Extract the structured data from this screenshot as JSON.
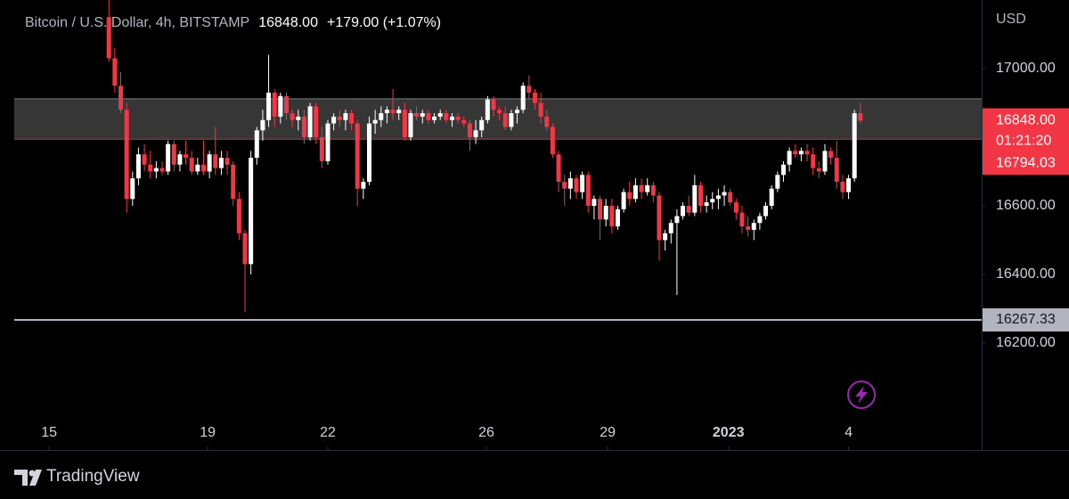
{
  "chart_data": {
    "type": "candlestick",
    "title": "Bitcoin / U.S. Dollar, 4h, BITSTAMP",
    "last_price": {
      "value": 16848,
      "label": "16848.00"
    },
    "change": "+179.00 (+1.07%)",
    "currency": "USD",
    "countdown": "01:21:20",
    "up_color": "#ffffff",
    "down_color": "#f23645",
    "ylim": [
      16005,
      17200
    ],
    "yticks": [
      {
        "value": 16200,
        "label": "16200.00"
      },
      {
        "value": 16400,
        "label": "16400.00"
      },
      {
        "value": 16600,
        "label": "16600.00"
      },
      {
        "value": 17000,
        "label": "17000.00"
      }
    ],
    "xlim": [
      -18.4,
      147.2
    ],
    "xticks": [
      {
        "value": -10.1,
        "label": "15"
      },
      {
        "value": 16.7,
        "label": "19"
      },
      {
        "value": 37.0,
        "label": "22"
      },
      {
        "value": 63.8,
        "label": "26"
      },
      {
        "value": 84.3,
        "label": "29"
      },
      {
        "value": 104.7,
        "label": "2023"
      },
      {
        "value": 125.0,
        "label": "4"
      }
    ],
    "zone": {
      "top": 16912,
      "bottom": {
        "value": 16794.03,
        "label": "16794.03"
      }
    },
    "level": {
      "value": 16267.33,
      "label": "16267.33"
    },
    "open": [
      17150,
      17030,
      16950,
      16880,
      16620,
      16680,
      16750,
      16720,
      16700,
      16710,
      16700,
      16780,
      16720,
      16750,
      16740,
      16700,
      16720,
      16700,
      16750,
      16710,
      16740,
      16720,
      16620,
      16520,
      16430,
      16740,
      16820,
      16850,
      16930,
      16860,
      16920,
      16870,
      16850,
      16860,
      16800,
      16890,
      16800,
      16730,
      16840,
      16860,
      16850,
      16870,
      16840,
      16650,
      16670,
      16840,
      16850,
      16870,
      16880,
      16870,
      16880,
      16800,
      16870,
      16860,
      16870,
      16850,
      16860,
      16870,
      16850,
      16860,
      16850,
      16840,
      16800,
      16820,
      16850,
      16910,
      16880,
      16870,
      16830,
      16870,
      16880,
      16950,
      16930,
      16900,
      16860,
      16830,
      16750,
      16670,
      16650,
      16680,
      16640,
      16690,
      16600,
      16620,
      16560,
      16600,
      16540,
      16590,
      16640,
      16620,
      16660,
      16640,
      16660,
      16630,
      16500,
      16520,
      16550,
      16570,
      16600,
      16580,
      16660,
      16600,
      16610,
      16620,
      16630,
      16640,
      16610,
      16580,
      16540,
      16530,
      16550,
      16570,
      16600,
      16650,
      16690,
      16720,
      16760,
      16750,
      16760,
      16750,
      16710,
      16700,
      16760,
      16740,
      16670,
      16640,
      16680,
      16870
    ],
    "high": [
      17200,
      17060,
      16990,
      16900,
      16700,
      16770,
      16780,
      16760,
      16730,
      16730,
      16790,
      16790,
      16760,
      16790,
      16760,
      16740,
      16790,
      16760,
      16830,
      16760,
      16760,
      16730,
      16640,
      16530,
      16760,
      16830,
      16880,
      17040,
      16940,
      16930,
      16930,
      16880,
      16880,
      16880,
      16900,
      16900,
      16830,
      16850,
      16870,
      16880,
      16880,
      16880,
      16850,
      16680,
      16860,
      16880,
      16890,
      16890,
      16940,
      16890,
      16900,
      16880,
      16890,
      16880,
      16880,
      16870,
      16880,
      16880,
      16870,
      16870,
      16860,
      16850,
      16850,
      16860,
      16920,
      16920,
      16890,
      16890,
      16880,
      16890,
      16960,
      16980,
      16940,
      16930,
      16880,
      16840,
      16760,
      16690,
      16700,
      16690,
      16700,
      16700,
      16630,
      16630,
      16620,
      16620,
      16600,
      16650,
      16670,
      16680,
      16680,
      16680,
      16670,
      16640,
      16530,
      16560,
      16590,
      16610,
      16630,
      16690,
      16670,
      16630,
      16640,
      16650,
      16660,
      16650,
      16620,
      16600,
      16570,
      16560,
      16580,
      16610,
      16660,
      16700,
      16730,
      16770,
      16780,
      16770,
      16780,
      16770,
      16730,
      16780,
      16770,
      16790,
      16690,
      16690,
      16880,
      16900
    ],
    "low": [
      17020,
      16930,
      16870,
      16580,
      16600,
      16660,
      16700,
      16680,
      16680,
      16690,
      16690,
      16700,
      16700,
      16720,
      16690,
      16690,
      16690,
      16680,
      16690,
      16690,
      16690,
      16600,
      16500,
      16290,
      16400,
      16720,
      16790,
      16830,
      16830,
      16840,
      16850,
      16830,
      16820,
      16780,
      16790,
      16780,
      16710,
      16720,
      16820,
      16830,
      16820,
      16820,
      16600,
      16620,
      16660,
      16810,
      16830,
      16840,
      16850,
      16850,
      16790,
      16790,
      16850,
      16840,
      16840,
      16840,
      16850,
      16840,
      16830,
      16840,
      16830,
      16760,
      16780,
      16800,
      16840,
      16860,
      16850,
      16820,
      16820,
      16840,
      16870,
      16910,
      16880,
      16840,
      16820,
      16740,
      16640,
      16600,
      16620,
      16620,
      16620,
      16580,
      16560,
      16500,
      16540,
      16520,
      16530,
      16580,
      16600,
      16610,
      16620,
      16630,
      16610,
      16440,
      16470,
      16490,
      16340,
      16560,
      16570,
      16570,
      16580,
      16580,
      16590,
      16590,
      16600,
      16600,
      16560,
      16520,
      16510,
      16500,
      16530,
      16560,
      16590,
      16640,
      16670,
      16700,
      16740,
      16730,
      16730,
      16690,
      16680,
      16690,
      16720,
      16650,
      16620,
      16620,
      16670,
      16840
    ],
    "close": [
      17030,
      16950,
      16880,
      16620,
      16680,
      16750,
      16720,
      16700,
      16710,
      16700,
      16780,
      16720,
      16750,
      16740,
      16700,
      16720,
      16700,
      16750,
      16710,
      16740,
      16720,
      16620,
      16520,
      16430,
      16740,
      16820,
      16850,
      16930,
      16860,
      16920,
      16870,
      16850,
      16860,
      16800,
      16890,
      16800,
      16730,
      16840,
      16860,
      16850,
      16870,
      16840,
      16650,
      16670,
      16840,
      16850,
      16870,
      16880,
      16870,
      16880,
      16800,
      16870,
      16860,
      16870,
      16850,
      16860,
      16870,
      16850,
      16860,
      16850,
      16840,
      16800,
      16820,
      16850,
      16910,
      16880,
      16870,
      16830,
      16870,
      16880,
      16950,
      16930,
      16900,
      16860,
      16830,
      16750,
      16670,
      16650,
      16680,
      16640,
      16690,
      16600,
      16620,
      16560,
      16600,
      16540,
      16590,
      16640,
      16620,
      16660,
      16640,
      16660,
      16630,
      16500,
      16520,
      16550,
      16570,
      16600,
      16580,
      16660,
      16600,
      16610,
      16620,
      16630,
      16640,
      16610,
      16580,
      16540,
      16530,
      16550,
      16570,
      16600,
      16650,
      16690,
      16720,
      16760,
      16750,
      16760,
      16750,
      16710,
      16700,
      16760,
      16740,
      16670,
      16640,
      16680,
      16870,
      16848
    ]
  },
  "brand": "TradingView"
}
